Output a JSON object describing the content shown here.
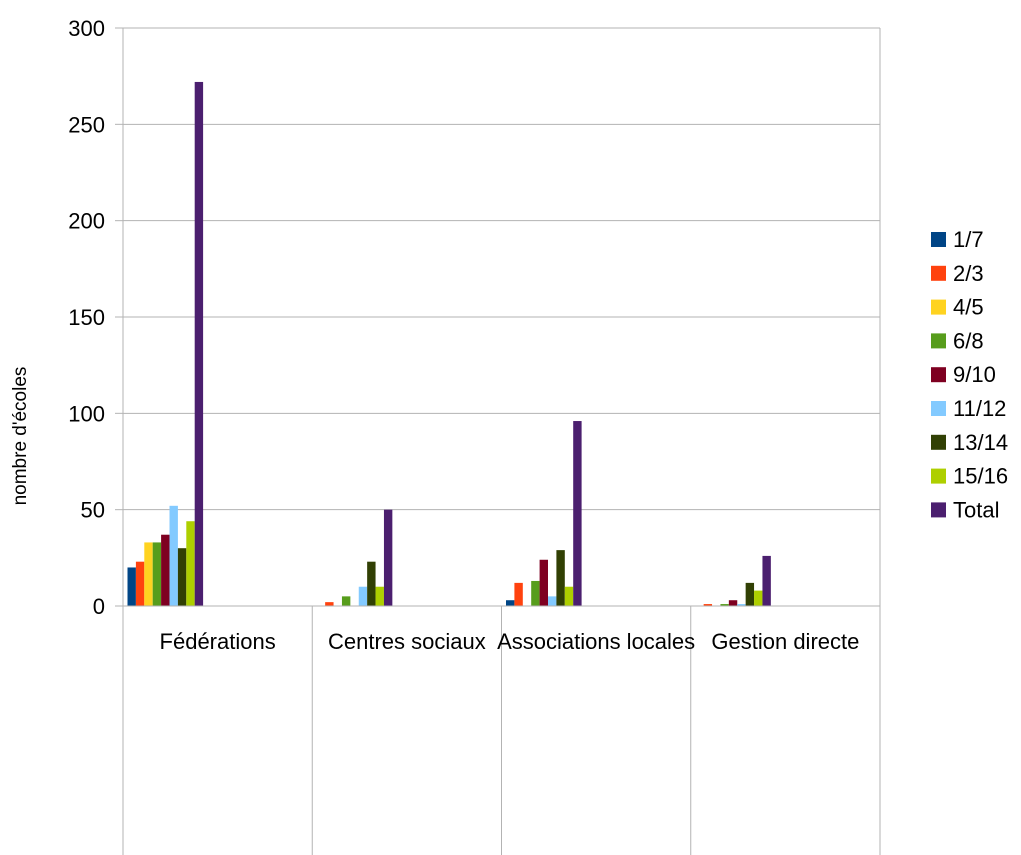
{
  "chart_data": {
    "type": "bar",
    "title": "",
    "xlabel": "",
    "ylabel": "nombre d'écoles",
    "ylim": [
      0,
      300
    ],
    "yticks": [
      0,
      50,
      100,
      150,
      200,
      250,
      300
    ],
    "grid": true,
    "legend_position": "right",
    "categories": [
      "Fédérations",
      "Centres sociaux",
      "Associations locales",
      "Gestion directe"
    ],
    "series": [
      {
        "name": "1/7",
        "color": "#004586",
        "values": [
          20,
          0,
          3,
          0
        ]
      },
      {
        "name": "2/3",
        "color": "#ff420e",
        "values": [
          23,
          2,
          12,
          1
        ]
      },
      {
        "name": "4/5",
        "color": "#ffd320",
        "values": [
          33,
          0,
          0,
          0
        ]
      },
      {
        "name": "6/8",
        "color": "#579d1c",
        "values": [
          33,
          5,
          13,
          1
        ]
      },
      {
        "name": "9/10",
        "color": "#7e0021",
        "values": [
          37,
          0,
          24,
          3
        ]
      },
      {
        "name": "11/12",
        "color": "#83caff",
        "values": [
          52,
          10,
          5,
          1
        ]
      },
      {
        "name": "13/14",
        "color": "#314004",
        "values": [
          30,
          23,
          29,
          12
        ]
      },
      {
        "name": "15/16",
        "color": "#aecf00",
        "values": [
          44,
          10,
          10,
          8
        ]
      },
      {
        "name": "Total",
        "color": "#4b1f6f",
        "values": [
          272,
          50,
          96,
          26
        ]
      }
    ]
  }
}
